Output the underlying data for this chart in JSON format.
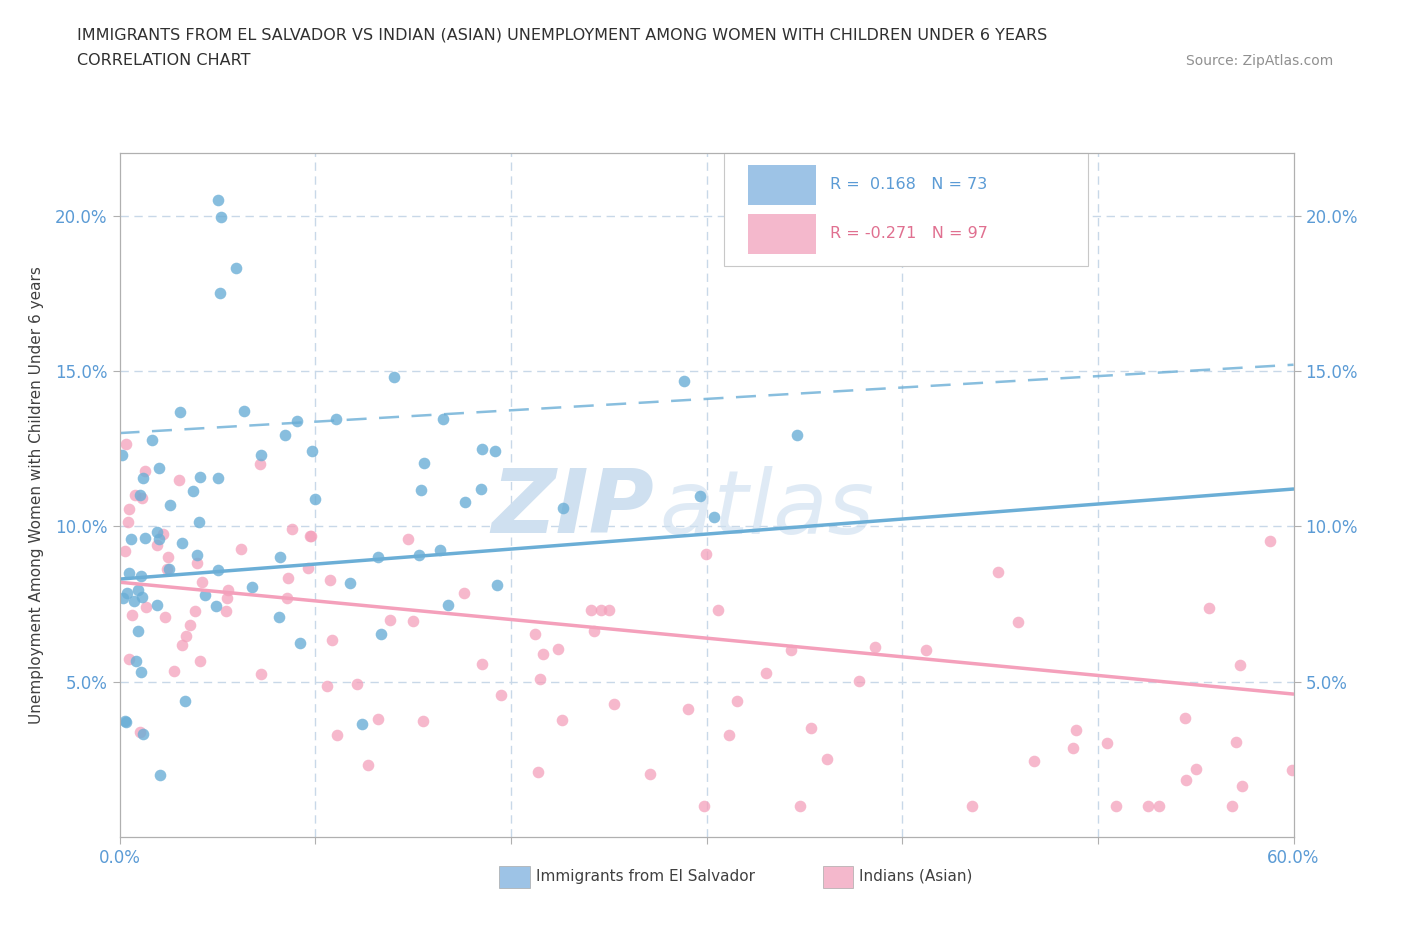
{
  "title_line1": "IMMIGRANTS FROM EL SALVADOR VS INDIAN (ASIAN) UNEMPLOYMENT AMONG WOMEN WITH CHILDREN UNDER 6 YEARS",
  "title_line2": "CORRELATION CHART",
  "source_text": "Source: ZipAtlas.com",
  "ylabel": "Unemployment Among Women with Children Under 6 years",
  "xlim": [
    0.0,
    0.6
  ],
  "ylim": [
    0.0,
    0.22
  ],
  "blue_color": "#6baed6",
  "pink_color": "#f4a0bb",
  "blue_R": 0.168,
  "blue_N": 73,
  "pink_R": -0.271,
  "pink_N": 97,
  "blue_trend_x": [
    0.0,
    0.6
  ],
  "blue_trend_y": [
    0.083,
    0.112
  ],
  "pink_trend_x": [
    0.0,
    0.6
  ],
  "pink_trend_y": [
    0.082,
    0.046
  ],
  "dashed_trend_x": [
    0.0,
    0.6
  ],
  "dashed_trend_y": [
    0.13,
    0.152
  ],
  "axis_color": "#b0b0b0",
  "grid_color": "#c8d8e8",
  "tick_color": "#5b9bd5",
  "bg_color": "#ffffff",
  "watermark_color": "#dceef8",
  "legend_box_color_blue": "#9dc3e6",
  "legend_box_color_pink": "#f4b8cc",
  "legend_R_blue_color": "#5b9bd5",
  "legend_R_pink_color": "#e07090"
}
